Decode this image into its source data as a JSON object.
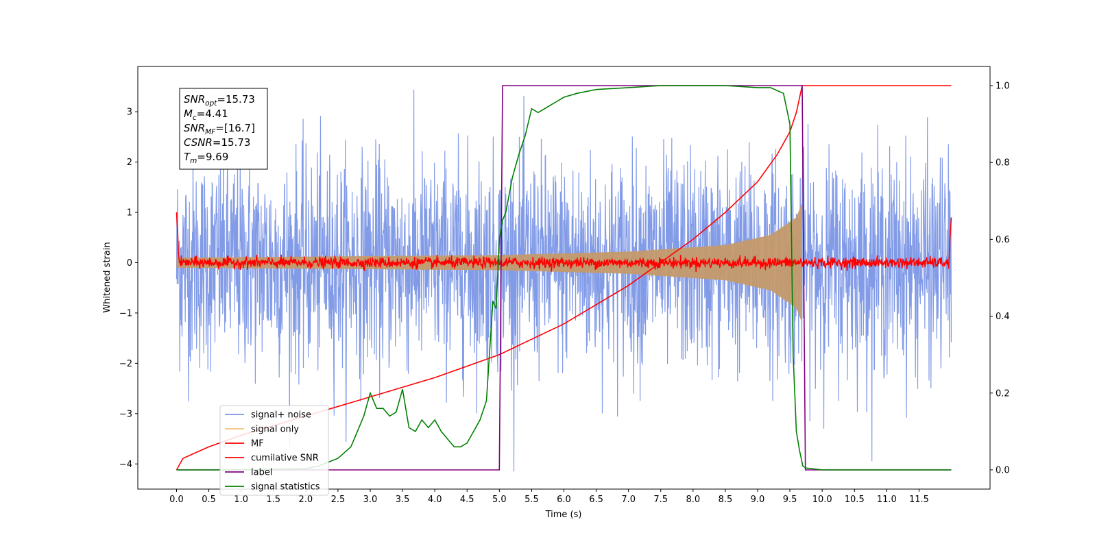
{
  "chart_data": {
    "type": "line",
    "xlabel": "Time (s)",
    "ylabel": "Whitened strain",
    "xlim": [
      -0.6,
      12.6
    ],
    "ylim": [
      -4.5,
      3.9
    ],
    "y2lim": [
      -0.05,
      1.05
    ],
    "x_ticks": [
      "0.0",
      "0.5",
      "1.0",
      "1.5",
      "2.0",
      "2.5",
      "3.0",
      "3.5",
      "4.0",
      "4.5",
      "5.0",
      "5.5",
      "6.0",
      "6.5",
      "7.0",
      "7.5",
      "8.0",
      "8.5",
      "9.0",
      "9.5",
      "10.0",
      "10.5",
      "11.0",
      "11.5"
    ],
    "y_ticks": [
      "3",
      "2",
      "1",
      "0",
      "−1",
      "−2",
      "−3",
      "−4"
    ],
    "y2_ticks": [
      "1.0",
      "0.8",
      "0.6",
      "0.4",
      "0.2",
      "0.0"
    ],
    "annotation": {
      "lines": [
        {
          "base": "SNR",
          "sub": "opt",
          "value": "=15.73"
        },
        {
          "base": "M",
          "sub": "c",
          "value": "=4.41"
        },
        {
          "base": "SNR",
          "sub": "MF",
          "value": "=[16.7]"
        },
        {
          "base": "CSNR",
          "sub": "",
          "value": "=15.73"
        },
        {
          "base": "T",
          "sub": "m",
          "value": "=9.69"
        }
      ]
    },
    "legend": {
      "position": "lower-left",
      "entries": [
        {
          "label": "signal+ noise",
          "color": "#7b96e6"
        },
        {
          "label": "signal only",
          "color": "#f5c07a"
        },
        {
          "label": "MF",
          "color": "#ff0000"
        },
        {
          "label": "cumilative SNR",
          "color": "#ff0000"
        },
        {
          "label": "label",
          "color": "#800080"
        },
        {
          "label": "signal statistics",
          "color": "#008000"
        }
      ]
    },
    "series": [
      {
        "name": "signal+ noise",
        "axis": "left",
        "color": "#7b96e6",
        "kind": "noise",
        "x_range": [
          0.0,
          12.0
        ],
        "amplitude_range": [
          -4.15,
          3.55
        ]
      },
      {
        "name": "signal only",
        "axis": "left",
        "color": "#c49a6c",
        "kind": "chirp_envelope",
        "x": [
          0.0,
          5.0,
          7.0,
          8.5,
          9.2,
          9.6,
          9.69
        ],
        "y": [
          0.1,
          0.15,
          0.22,
          0.35,
          0.55,
          0.9,
          1.2
        ]
      },
      {
        "name": "MF",
        "axis": "left",
        "color": "#ff0000",
        "kind": "noise_small",
        "x_range": [
          0.0,
          12.0
        ],
        "amplitude": 0.12,
        "edge_values": [
          1.0,
          0.9
        ]
      },
      {
        "name": "cumilative SNR",
        "axis": "right",
        "color": "#ff0000",
        "x": [
          0.0,
          0.1,
          0.5,
          1.0,
          2.0,
          3.0,
          4.0,
          5.0,
          6.0,
          7.0,
          8.0,
          8.5,
          9.0,
          9.3,
          9.5,
          9.6,
          9.69,
          10.0,
          12.0
        ],
        "y": [
          0.0,
          0.03,
          0.06,
          0.09,
          0.14,
          0.19,
          0.24,
          0.3,
          0.38,
          0.48,
          0.6,
          0.67,
          0.75,
          0.82,
          0.88,
          0.93,
          1.0,
          1.0,
          1.0
        ]
      },
      {
        "name": "label",
        "axis": "right",
        "color": "#800080",
        "x": [
          0.0,
          5.0,
          5.05,
          9.69,
          9.74,
          12.0
        ],
        "y": [
          0.0,
          0.0,
          1.0,
          1.0,
          0.0,
          0.0
        ]
      },
      {
        "name": "signal statistics",
        "axis": "right",
        "color": "#008000",
        "x": [
          0.0,
          1.0,
          2.0,
          2.2,
          2.5,
          2.7,
          2.8,
          2.9,
          3.0,
          3.1,
          3.2,
          3.3,
          3.4,
          3.5,
          3.6,
          3.7,
          3.8,
          3.9,
          4.0,
          4.1,
          4.2,
          4.3,
          4.4,
          4.5,
          4.7,
          4.8,
          4.9,
          4.95,
          5.0,
          5.05,
          5.1,
          5.2,
          5.3,
          5.4,
          5.5,
          5.6,
          5.7,
          5.8,
          5.9,
          6.0,
          6.2,
          6.5,
          7.0,
          7.5,
          8.0,
          8.5,
          9.0,
          9.2,
          9.4,
          9.5,
          9.55,
          9.6,
          9.65,
          9.7,
          9.75,
          10.0,
          12.0
        ],
        "y": [
          0.0,
          0.0,
          0.003,
          0.01,
          0.03,
          0.06,
          0.1,
          0.14,
          0.2,
          0.16,
          0.16,
          0.14,
          0.15,
          0.21,
          0.11,
          0.1,
          0.13,
          0.11,
          0.13,
          0.1,
          0.08,
          0.06,
          0.06,
          0.07,
          0.13,
          0.18,
          0.44,
          0.42,
          0.6,
          0.65,
          0.67,
          0.76,
          0.82,
          0.87,
          0.94,
          0.93,
          0.94,
          0.95,
          0.96,
          0.97,
          0.98,
          0.99,
          0.995,
          1.0,
          1.0,
          1.0,
          0.995,
          0.995,
          0.98,
          0.9,
          0.3,
          0.1,
          0.05,
          0.01,
          0.005,
          0.0,
          0.0
        ]
      }
    ]
  }
}
